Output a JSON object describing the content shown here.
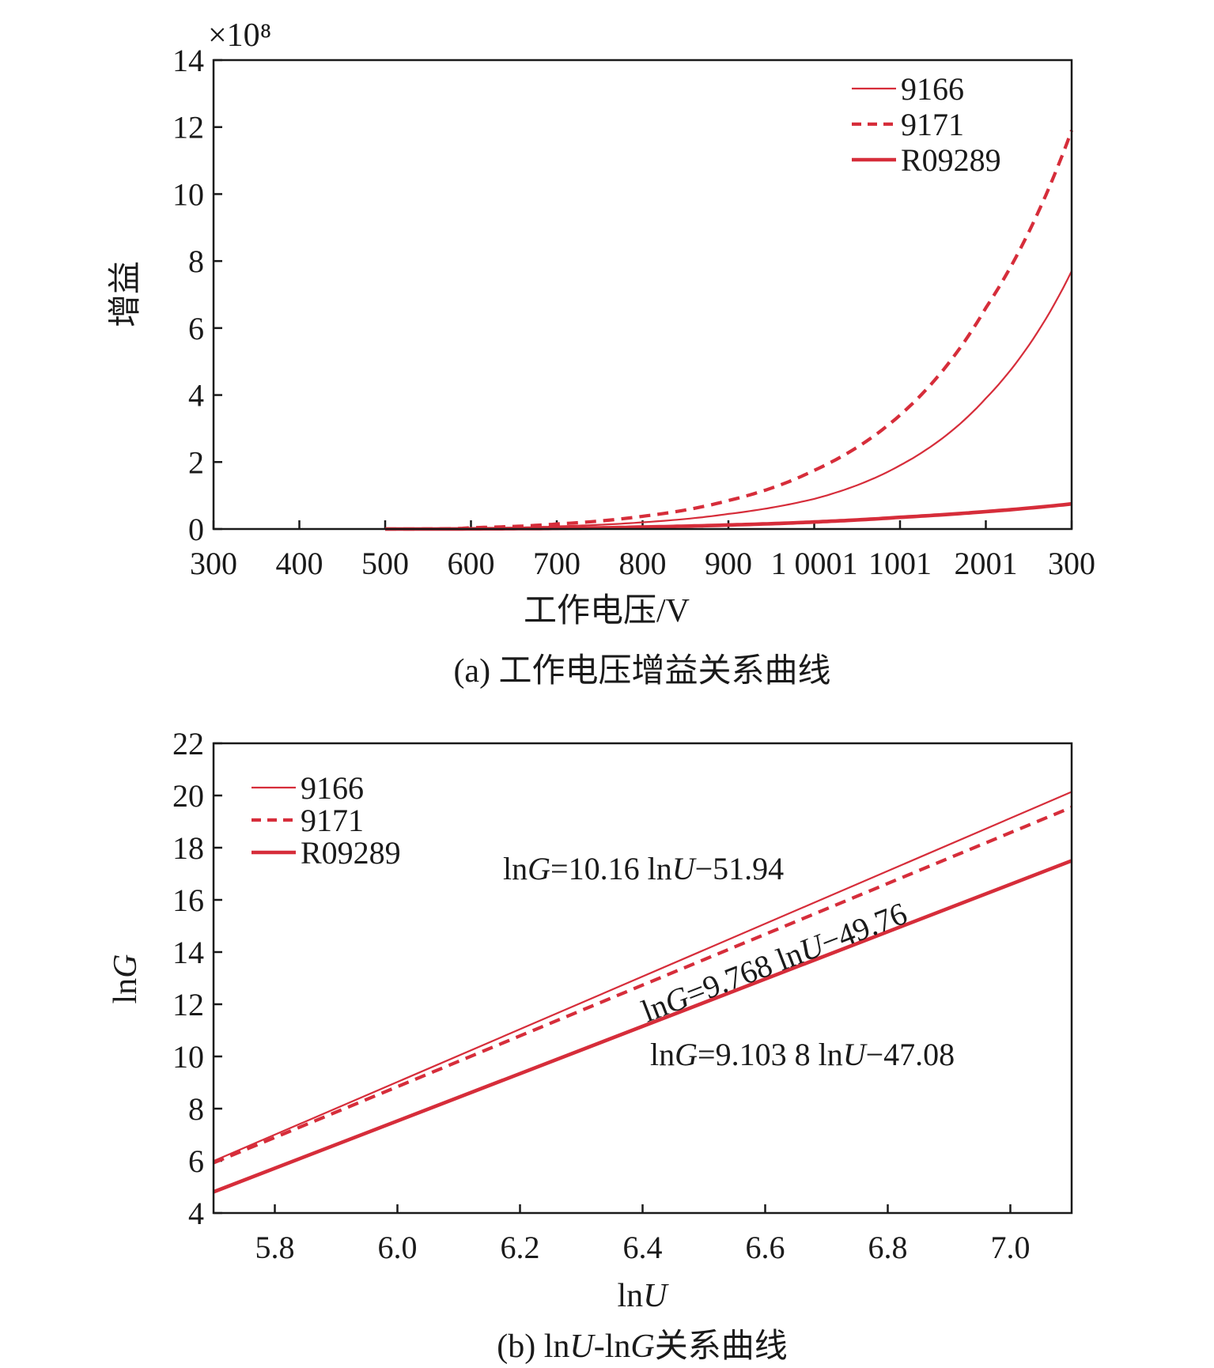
{
  "colors": {
    "series": "#d62d3a",
    "axis": "#1a1a1a",
    "background": "#ffffff"
  },
  "chart_data": [
    {
      "type": "line",
      "panel": "a",
      "caption": "(a) 工作电压增益关系曲线",
      "xlabel": "工作电压/V",
      "ylabel": "增益",
      "y_multiplier": "×10⁸",
      "xlim": [
        300,
        1300
      ],
      "ylim": [
        0,
        14
      ],
      "x_ticks": [
        "300",
        "400",
        "500",
        "600",
        "700",
        "800",
        "900",
        "1 000",
        "1 100",
        "1 200",
        "1 300"
      ],
      "x_tick_labels_rendered": [
        "300",
        "400",
        "500",
        "600",
        "700",
        "800",
        "900",
        "1 0001",
        "1001",
        "2001",
        "300"
      ],
      "y_ticks": [
        "0",
        "2",
        "4",
        "6",
        "8",
        "10",
        "12",
        "14"
      ],
      "legend_position": "top-right",
      "series": [
        {
          "name": "9166",
          "style": "thin-solid",
          "x": [
            500,
            600,
            700,
            800,
            900,
            1000,
            1100,
            1200,
            1300
          ],
          "y": [
            0.0,
            0.02,
            0.08,
            0.2,
            0.45,
            0.9,
            1.9,
            3.9,
            7.7
          ]
        },
        {
          "name": "9171",
          "style": "dashed",
          "x": [
            500,
            600,
            700,
            800,
            900,
            1000,
            1100,
            1200,
            1300
          ],
          "y": [
            0.0,
            0.04,
            0.15,
            0.38,
            0.85,
            1.75,
            3.4,
            6.6,
            11.9
          ]
        },
        {
          "name": "R09289",
          "style": "thick-solid",
          "x": [
            500,
            600,
            700,
            800,
            900,
            1000,
            1100,
            1200,
            1300
          ],
          "y": [
            0.0,
            0.005,
            0.02,
            0.06,
            0.12,
            0.21,
            0.35,
            0.52,
            0.75
          ]
        }
      ]
    },
    {
      "type": "line",
      "panel": "b",
      "caption_parts": [
        "(b) ln",
        "U",
        "-ln",
        "G",
        "关系曲线"
      ],
      "xlabel_parts": [
        "ln",
        "U"
      ],
      "ylabel_parts": [
        "ln",
        "G"
      ],
      "xlim": [
        5.7,
        7.1
      ],
      "ylim": [
        4,
        22
      ],
      "x_ticks": [
        "5.8",
        "6.0",
        "6.2",
        "6.4",
        "6.6",
        "6.8",
        "7.0"
      ],
      "y_ticks": [
        "4",
        "6",
        "8",
        "10",
        "12",
        "14",
        "16",
        "18",
        "20",
        "22"
      ],
      "legend_position": "top-left",
      "series": [
        {
          "name": "9166",
          "style": "thin-solid",
          "x": [
            5.7,
            7.1
          ],
          "y": [
            5.99,
            20.14
          ]
        },
        {
          "name": "9171",
          "style": "dashed",
          "x": [
            5.7,
            7.1
          ],
          "y": [
            5.92,
            19.55
          ]
        },
        {
          "name": "R09289",
          "style": "thick-solid",
          "x": [
            5.7,
            7.1
          ],
          "y": [
            4.81,
            17.5
          ]
        }
      ],
      "annotations": [
        {
          "parts": [
            "ln",
            "G",
            "=10.16 ln",
            "U",
            "−51.94"
          ],
          "rotate": 0
        },
        {
          "parts": [
            "ln",
            "G",
            "=9.768 ln",
            "U",
            "−49.76"
          ],
          "rotate": -21
        },
        {
          "parts": [
            "ln",
            "G",
            "=9.103 8 ln",
            "U",
            "−47.08"
          ],
          "rotate": 0
        }
      ]
    }
  ]
}
